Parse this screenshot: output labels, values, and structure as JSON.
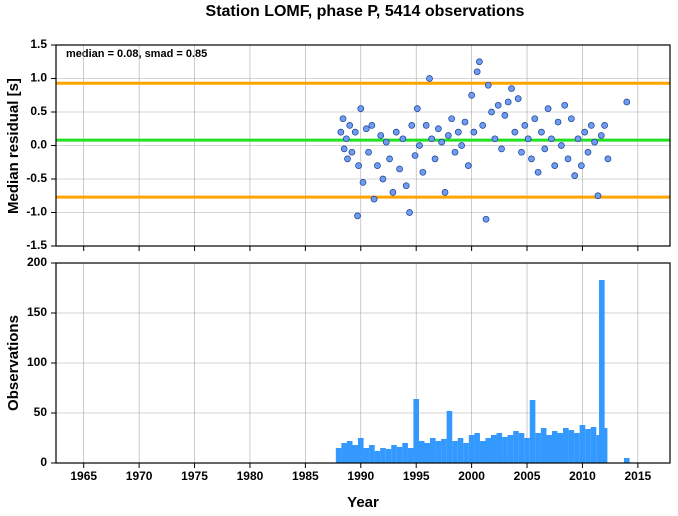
{
  "chart_data": [
    {
      "type": "scatter",
      "title": "Station LOMF, phase P, 5414 observations",
      "y_label": "Median residual [s]",
      "annotation": "median = 0.08, smad = 0.85",
      "xlim": [
        1962.5,
        2017.9
      ],
      "xticks": [
        1965,
        1970,
        1975,
        1980,
        1985,
        1990,
        1995,
        2000,
        2005,
        2010,
        2015
      ],
      "ylim": [
        -1.5,
        1.5
      ],
      "yticks": [
        -1.5,
        {
          "value": -1,
          "label": "-1.0"
        },
        -0.5,
        {
          "value": 0,
          "label": "0.0"
        },
        0.5,
        {
          "value": 1,
          "label": "1.0"
        },
        1.5
      ],
      "grid": true,
      "color": "#6f9bf0",
      "hlines": [
        {
          "value": 0.93,
          "color": "#ffa500"
        },
        {
          "value": 0.08,
          "color": "#22e022"
        },
        {
          "value": -0.77,
          "color": "#ffa500"
        }
      ],
      "x": [
        1988.2,
        1988.4,
        1988.5,
        1988.7,
        1988.8,
        1989.0,
        1989.2,
        1989.5,
        1989.7,
        1989.8,
        1990.0,
        1990.2,
        1990.5,
        1990.7,
        1991.0,
        1991.2,
        1991.5,
        1991.8,
        1992.0,
        1992.3,
        1992.6,
        1992.9,
        1993.2,
        1993.5,
        1993.8,
        1994.1,
        1994.4,
        1994.6,
        1994.9,
        1995.1,
        1995.3,
        1995.6,
        1995.9,
        1996.2,
        1996.4,
        1996.7,
        1997.0,
        1997.3,
        1997.6,
        1997.9,
        1998.2,
        1998.5,
        1998.8,
        1999.1,
        1999.4,
        1999.7,
        2000.0,
        2000.2,
        2000.5,
        2000.7,
        2001.0,
        2001.3,
        2001.5,
        2001.8,
        2002.1,
        2002.4,
        2002.7,
        2003.0,
        2003.3,
        2003.6,
        2003.9,
        2004.2,
        2004.5,
        2004.8,
        2005.1,
        2005.4,
        2005.7,
        2006.0,
        2006.3,
        2006.6,
        2006.9,
        2007.2,
        2007.5,
        2007.8,
        2008.1,
        2008.4,
        2008.7,
        2009.0,
        2009.3,
        2009.6,
        2009.9,
        2010.2,
        2010.5,
        2010.8,
        2011.1,
        2011.4,
        2011.7,
        2012.0,
        2012.3,
        2014.0
      ],
      "values": [
        0.2,
        0.4,
        -0.05,
        0.1,
        -0.2,
        0.3,
        -0.1,
        0.2,
        -1.05,
        -0.3,
        0.55,
        -0.55,
        0.25,
        -0.1,
        0.3,
        -0.8,
        -0.3,
        0.15,
        -0.5,
        0.05,
        -0.2,
        -0.7,
        0.2,
        -0.35,
        0.1,
        -0.6,
        -1.0,
        0.3,
        -0.15,
        0.55,
        0.0,
        -0.4,
        0.3,
        1.0,
        0.1,
        -0.2,
        0.25,
        0.05,
        -0.7,
        0.15,
        0.4,
        -0.1,
        0.2,
        0.0,
        0.35,
        -0.3,
        0.75,
        0.2,
        1.1,
        1.25,
        0.3,
        -1.1,
        0.9,
        0.5,
        0.1,
        0.6,
        -0.05,
        0.45,
        0.65,
        0.85,
        0.2,
        0.7,
        -0.1,
        0.3,
        0.1,
        -0.2,
        0.4,
        -0.4,
        0.2,
        -0.05,
        0.55,
        0.1,
        -0.3,
        0.35,
        0.0,
        0.6,
        -0.2,
        0.4,
        -0.45,
        0.1,
        -0.3,
        0.2,
        -0.1,
        0.3,
        0.05,
        -0.75,
        0.15,
        0.3,
        -0.2,
        0.65
      ]
    },
    {
      "type": "bar",
      "x_label": "Year",
      "y_label": "Observations",
      "xlim": [
        1962.5,
        2017.9
      ],
      "xticks": [
        1965,
        1970,
        1975,
        1980,
        1985,
        1990,
        1995,
        2000,
        2005,
        2010,
        2015
      ],
      "ylim": [
        0,
        200
      ],
      "yticks": [
        0,
        50,
        100,
        150,
        200
      ],
      "grid": true,
      "color": "#3399ff",
      "x": [
        1988.0,
        1988.5,
        1989.0,
        1989.5,
        1990.0,
        1990.5,
        1991.0,
        1991.5,
        1992.0,
        1992.5,
        1993.0,
        1993.5,
        1994.0,
        1994.5,
        1995.0,
        1995.5,
        1996.0,
        1996.5,
        1997.0,
        1997.5,
        1998.0,
        1998.5,
        1999.0,
        1999.5,
        2000.0,
        2000.5,
        2001.0,
        2001.5,
        2002.0,
        2002.5,
        2003.0,
        2003.5,
        2004.0,
        2004.5,
        2005.0,
        2005.5,
        2006.0,
        2006.5,
        2007.0,
        2007.5,
        2008.0,
        2008.5,
        2009.0,
        2009.5,
        2010.0,
        2010.5,
        2011.0,
        2011.5,
        2011.75,
        2012.0,
        2014.0
      ],
      "values": [
        15,
        20,
        22,
        18,
        25,
        15,
        18,
        12,
        15,
        14,
        18,
        16,
        20,
        15,
        64,
        22,
        20,
        25,
        22,
        24,
        52,
        22,
        25,
        20,
        28,
        30,
        22,
        25,
        28,
        30,
        26,
        28,
        32,
        30,
        25,
        63,
        30,
        35,
        28,
        32,
        30,
        35,
        33,
        30,
        38,
        34,
        36,
        28,
        183,
        35,
        5
      ]
    }
  ]
}
